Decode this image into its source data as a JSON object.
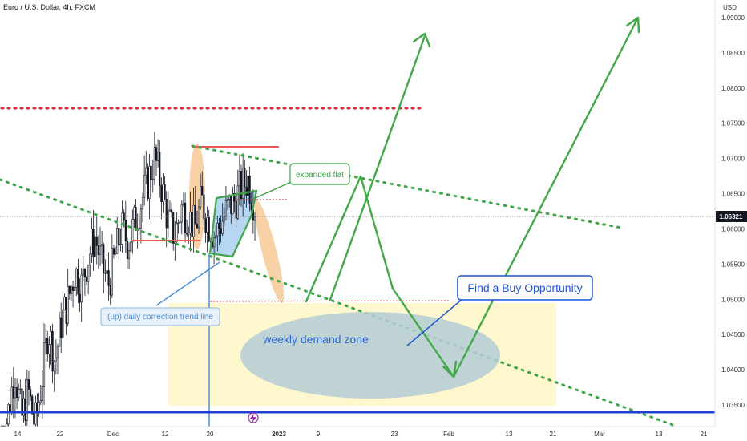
{
  "header": {
    "symbol_title": "Euro / U.S. Dollar, 4h, FXCM",
    "currency": "USD"
  },
  "icons": {
    "event_marker": "lightning-icon"
  },
  "colors": {
    "background": "#ffffff",
    "candle": "#131722",
    "support_line": "#1e3fd0",
    "trend_dots": "#3fa548",
    "resistance_dots": "#e0283a",
    "resistance_line": "#f05a5a",
    "demand_zone_fill": "#fff7c2",
    "demand_ellipse": "#b7cfd9",
    "arrow_green": "#43a847",
    "correction_fill": "#f5c58f",
    "channel_blue": "#9ec8ec",
    "callout_blue": "#1e55d0",
    "price_label_bg": "#131722"
  },
  "chart_data": {
    "type": "candlestick",
    "timeframe": "4h",
    "instrument": "EUR/USD",
    "ylim": [
      1.0315,
      1.0955
    ],
    "y_ticks": [
      "1.09000",
      "1.08500",
      "1.08000",
      "1.07500",
      "1.07000",
      "1.06500",
      "1.06000",
      "1.05500",
      "1.05000",
      "1.04500",
      "1.04000",
      "1.03500"
    ],
    "x_ticks": [
      "14",
      "22",
      "Dec",
      "12",
      "20",
      "2023",
      "9",
      "23",
      "Feb",
      "13",
      "21",
      "Mar",
      "13",
      "21"
    ],
    "current_price": "1.06321",
    "price_path": [
      [
        0,
        1.029
      ],
      [
        1,
        1.034
      ],
      [
        2,
        1.04
      ],
      [
        3,
        1.033
      ],
      [
        4,
        1.037
      ],
      [
        5,
        1.032
      ],
      [
        6,
        1.038
      ],
      [
        7,
        1.046
      ],
      [
        8,
        1.041
      ],
      [
        9,
        1.047
      ],
      [
        10,
        1.05
      ],
      [
        11,
        1.054
      ],
      [
        12,
        1.052
      ],
      [
        13,
        1.056
      ],
      [
        14,
        1.059
      ],
      [
        15,
        1.055
      ],
      [
        16,
        1.052
      ],
      [
        17,
        1.056
      ],
      [
        18,
        1.06
      ],
      [
        19,
        1.058
      ],
      [
        20,
        1.061
      ],
      [
        21,
        1.064
      ],
      [
        22,
        1.067
      ],
      [
        23,
        1.07
      ],
      [
        24,
        1.066
      ],
      [
        25,
        1.061
      ],
      [
        26,
        1.059
      ],
      [
        27,
        1.063
      ],
      [
        28,
        1.062
      ],
      [
        29,
        1.06
      ],
      [
        30,
        1.064
      ],
      [
        31,
        1.061
      ],
      [
        32,
        1.059
      ],
      [
        33,
        1.061
      ],
      [
        34,
        1.063
      ],
      [
        35,
        1.064
      ],
      [
        36,
        1.066
      ],
      [
        37,
        1.067
      ],
      [
        38,
        1.0632
      ]
    ],
    "annotations": {
      "expanded_flat_label": "expanded flat",
      "trend_line_label": "(up) daily correction trend line",
      "demand_zone_label": "weekly demand zone",
      "buy_callout": "Find a Buy Opportunity"
    },
    "levels": {
      "top_resistance_dotted": 1.0793,
      "swing_high": 1.0737,
      "swing_level_left": 1.0599,
      "support_solid": 1.0339,
      "small_dotted_top": 1.0658,
      "small_dotted_low": 1.0505
    }
  }
}
